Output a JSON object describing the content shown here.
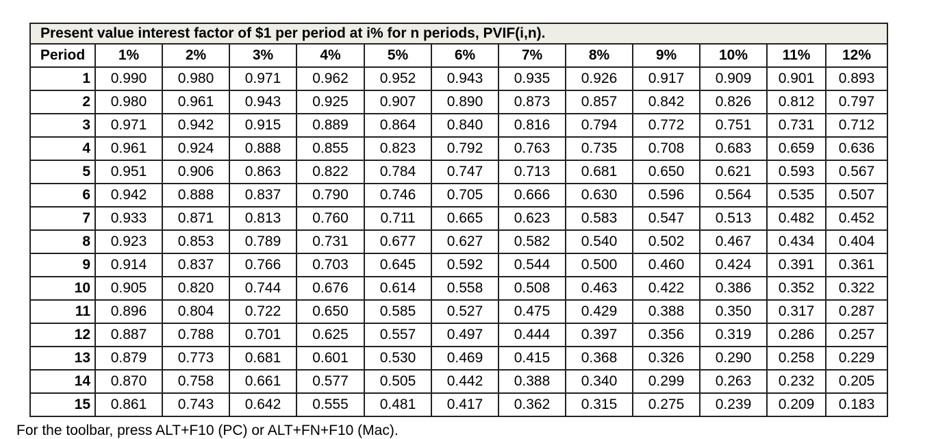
{
  "table": {
    "title": "Present value interest factor of $1 per period at i% for n periods, PVIF(i,n).",
    "header": [
      "Period",
      "1%",
      "2%",
      "3%",
      "4%",
      "5%",
      "6%",
      "7%",
      "8%",
      "9%",
      "10%",
      "11%",
      "12%"
    ],
    "rows": [
      [
        "1",
        "0.990",
        "0.980",
        "0.971",
        "0.962",
        "0.952",
        "0.943",
        "0.935",
        "0.926",
        "0.917",
        "0.909",
        "0.901",
        "0.893"
      ],
      [
        "2",
        "0.980",
        "0.961",
        "0.943",
        "0.925",
        "0.907",
        "0.890",
        "0.873",
        "0.857",
        "0.842",
        "0.826",
        "0.812",
        "0.797"
      ],
      [
        "3",
        "0.971",
        "0.942",
        "0.915",
        "0.889",
        "0.864",
        "0.840",
        "0.816",
        "0.794",
        "0.772",
        "0.751",
        "0.731",
        "0.712"
      ],
      [
        "4",
        "0.961",
        "0.924",
        "0.888",
        "0.855",
        "0.823",
        "0.792",
        "0.763",
        "0.735",
        "0.708",
        "0.683",
        "0.659",
        "0.636"
      ],
      [
        "5",
        "0.951",
        "0.906",
        "0.863",
        "0.822",
        "0.784",
        "0.747",
        "0.713",
        "0.681",
        "0.650",
        "0.621",
        "0.593",
        "0.567"
      ],
      [
        "6",
        "0.942",
        "0.888",
        "0.837",
        "0.790",
        "0.746",
        "0.705",
        "0.666",
        "0.630",
        "0.596",
        "0.564",
        "0.535",
        "0.507"
      ],
      [
        "7",
        "0.933",
        "0.871",
        "0.813",
        "0.760",
        "0.711",
        "0.665",
        "0.623",
        "0.583",
        "0.547",
        "0.513",
        "0.482",
        "0.452"
      ],
      [
        "8",
        "0.923",
        "0.853",
        "0.789",
        "0.731",
        "0.677",
        "0.627",
        "0.582",
        "0.540",
        "0.502",
        "0.467",
        "0.434",
        "0.404"
      ],
      [
        "9",
        "0.914",
        "0.837",
        "0.766",
        "0.703",
        "0.645",
        "0.592",
        "0.544",
        "0.500",
        "0.460",
        "0.424",
        "0.391",
        "0.361"
      ],
      [
        "10",
        "0.905",
        "0.820",
        "0.744",
        "0.676",
        "0.614",
        "0.558",
        "0.508",
        "0.463",
        "0.422",
        "0.386",
        "0.352",
        "0.322"
      ],
      [
        "11",
        "0.896",
        "0.804",
        "0.722",
        "0.650",
        "0.585",
        "0.527",
        "0.475",
        "0.429",
        "0.388",
        "0.350",
        "0.317",
        "0.287"
      ],
      [
        "12",
        "0.887",
        "0.788",
        "0.701",
        "0.625",
        "0.557",
        "0.497",
        "0.444",
        "0.397",
        "0.356",
        "0.319",
        "0.286",
        "0.257"
      ],
      [
        "13",
        "0.879",
        "0.773",
        "0.681",
        "0.601",
        "0.530",
        "0.469",
        "0.415",
        "0.368",
        "0.326",
        "0.290",
        "0.258",
        "0.229"
      ],
      [
        "14",
        "0.870",
        "0.758",
        "0.661",
        "0.577",
        "0.505",
        "0.442",
        "0.388",
        "0.340",
        "0.299",
        "0.263",
        "0.232",
        "0.205"
      ],
      [
        "15",
        "0.861",
        "0.743",
        "0.642",
        "0.555",
        "0.481",
        "0.417",
        "0.362",
        "0.315",
        "0.275",
        "0.239",
        "0.209",
        "0.183"
      ]
    ]
  },
  "footer_note": "For the toolbar, press ALT+F10 (PC) or ALT+FN+F10 (Mac)."
}
